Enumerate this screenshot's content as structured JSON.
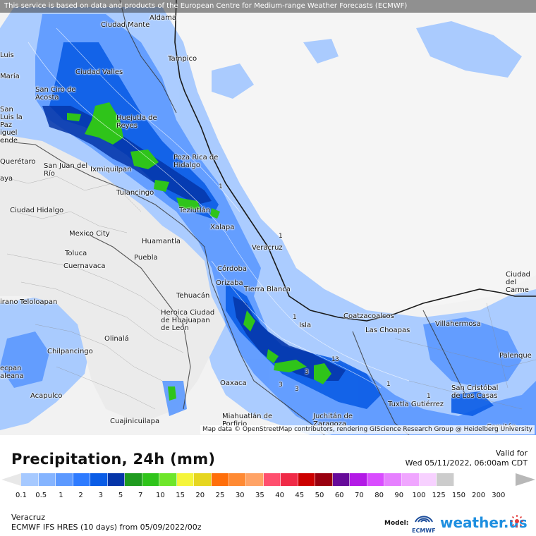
{
  "disclaimer": "This service is based on data and products of the European Centre for Medium-range Weather Forecasts (ECMWF)",
  "attribution": "Map data © OpenStreetMap contributors, rendering GIScience Research Group @ Heidelberg University",
  "cities": [
    {
      "name": "Aldama",
      "label": "Aldama"
    },
    {
      "name": "Ciudad Mante",
      "label": "Ciudad Mante"
    },
    {
      "name": "Tampico",
      "label": "Tampico"
    },
    {
      "name": "Luis Moya",
      "label": "Luis"
    },
    {
      "name": "Maria",
      "label": "María"
    },
    {
      "name": "Ciudad Valles",
      "label": "Ciudad Valles"
    },
    {
      "name": "San Ciro de Acosta",
      "label": "San Ciro de Acosta"
    },
    {
      "name": "San Luis de la Paz",
      "label": "San Luis la Paz"
    },
    {
      "name": "Huejutla de Reyes",
      "label": "Huejutla de Reyes"
    },
    {
      "name": "Miguel Allende",
      "label": "iguel ende"
    },
    {
      "name": "Poza Rica de Hidalgo",
      "label": "Poza Rica de Hidalgo"
    },
    {
      "name": "Queretaro",
      "label": "Querétaro"
    },
    {
      "name": "San Juan del Rio",
      "label": "San Juan del Río"
    },
    {
      "name": "Ixmiquilpan",
      "label": "Ixmiquilpan"
    },
    {
      "name": "Celaya",
      "label": "aya"
    },
    {
      "name": "Tulancingo",
      "label": "Tulancingo"
    },
    {
      "name": "Teziutlan",
      "label": "Teziutlán"
    },
    {
      "name": "Ciudad Hidalgo",
      "label": "Ciudad Hidalgo"
    },
    {
      "name": "Xalapa",
      "label": "Xalapa"
    },
    {
      "name": "Mexico City",
      "label": "Mexico City"
    },
    {
      "name": "Huamantla",
      "label": "Huamantla"
    },
    {
      "name": "Veracruz",
      "label": "Veracruz"
    },
    {
      "name": "Toluca",
      "label": "Toluca"
    },
    {
      "name": "Puebla",
      "label": "Puebla"
    },
    {
      "name": "Cuernavaca",
      "label": "Cuernavaca"
    },
    {
      "name": "Cordoba",
      "label": "Córdoba"
    },
    {
      "name": "Orizaba",
      "label": "Orizaba"
    },
    {
      "name": "Tierra Blanca",
      "label": "Tierra Blanca"
    },
    {
      "name": "Tehuacan",
      "label": "Tehuacán"
    },
    {
      "name": "Ciudad del Carmen",
      "label": "Ciudad del Carme"
    },
    {
      "name": "Teloloapan",
      "label": "Teloloapan"
    },
    {
      "name": "Altamirano",
      "label": "irano"
    },
    {
      "name": "Heroica Ciudad de Huajuapan de Leon",
      "label": "Heroica Ciudad de Huajuapan de León"
    },
    {
      "name": "Coatzacoalcos",
      "label": "Coatzacoalcos"
    },
    {
      "name": "Isla",
      "label": "Isla"
    },
    {
      "name": "Las Choapas",
      "label": "Las Choapas"
    },
    {
      "name": "Villahermosa",
      "label": "Villahermosa"
    },
    {
      "name": "Olinala",
      "label": "Olinalá"
    },
    {
      "name": "Chilpancingo",
      "label": "Chilpancingo"
    },
    {
      "name": "Palenque",
      "label": "Palenque"
    },
    {
      "name": "Tecpan de Galeana",
      "label": "ecpan aleana"
    },
    {
      "name": "Oaxaca",
      "label": "Oaxaca"
    },
    {
      "name": "San Cristobal de las Casas",
      "label": "San Cristóbal de Las Casas"
    },
    {
      "name": "Acapulco",
      "label": "Acapulco"
    },
    {
      "name": "Tuxtla Gutierrez",
      "label": "Tuxtla Gutiérrez"
    },
    {
      "name": "Miahuatlan de Porfirio Diaz",
      "label": "Miahuatlán de Porfirio"
    },
    {
      "name": "Juchitan de Zaragoza",
      "label": "Juchitán de Zaragoza"
    },
    {
      "name": "Cuajinicuilapa",
      "label": "Cuajinicuilapa"
    },
    {
      "name": "Comitan",
      "label": "Comitán"
    }
  ],
  "contour_labels": [
    "1",
    "1",
    "1",
    "1",
    "1",
    "1",
    "3",
    "3",
    "3",
    "3"
  ],
  "legend": {
    "title": "Precipitation, 24h (mm)",
    "valid_label": "Valid for",
    "valid_value": "Wed 05/11/2022, 06:00am CDT",
    "ticks": [
      "0.1",
      "0.5",
      "1",
      "2",
      "3",
      "5",
      "7",
      "10",
      "15",
      "20",
      "25",
      "30",
      "35",
      "40",
      "45",
      "50",
      "60",
      "70",
      "80",
      "90",
      "100",
      "125",
      "150",
      "200",
      "300"
    ],
    "colors": [
      "#a6c9ff",
      "#85b4ff",
      "#5c99ff",
      "#2e7bff",
      "#0a5ce6",
      "#0535a8",
      "#1f9b1f",
      "#2fc41a",
      "#6ee62a",
      "#f5f53a",
      "#e6d61f",
      "#ff6e0a",
      "#ff8a33",
      "#ffa366",
      "#ff4f6e",
      "#f02a47",
      "#cc0000",
      "#99000f",
      "#660a99",
      "#b31ae6",
      "#d94dff",
      "#e680ff",
      "#f0a6ff",
      "#f7d1ff",
      "#cccccc"
    ],
    "low_arrow_color": "#e8e8e8",
    "high_arrow_color": "#b8b8b8"
  },
  "footer": {
    "location": "Veracruz",
    "model_run": "ECMWF IFS HRES (10 days) from 05/09/2022/00z",
    "model_label": "Model:",
    "ecmwf_text": "ECMWF",
    "brand": "weather.us",
    "ecmwf_icon": "ecmwf-logo-icon",
    "brand_icon": "weather-us-logo-icon"
  }
}
